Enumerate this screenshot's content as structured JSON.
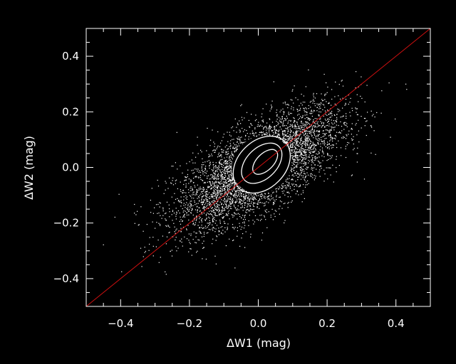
{
  "chart_data": {
    "type": "scatter",
    "title": "",
    "xlabel": "ΔW1 (mag)",
    "ylabel": "ΔW2 (mag)",
    "xlim": [
      -0.5,
      0.5
    ],
    "ylim": [
      -0.5,
      0.5
    ],
    "xticks": [
      -0.4,
      -0.2,
      0.0,
      0.2,
      0.4
    ],
    "yticks": [
      -0.4,
      -0.2,
      0.0,
      0.2,
      0.4
    ],
    "xtick_labels": [
      "−0.4",
      "−0.2",
      "0.0",
      "0.2",
      "0.4"
    ],
    "ytick_labels": [
      "−0.4",
      "−0.2",
      "0.0",
      "0.2",
      "0.4"
    ],
    "grid": false,
    "point_cloud": {
      "center": [
        0.0,
        0.0
      ],
      "correlation": 0.7,
      "sigma_x": 0.12,
      "sigma_y": 0.11,
      "color": "#ffffff"
    },
    "dense_core": {
      "x_range": [
        -0.08,
        0.1
      ],
      "y_range": [
        -0.09,
        0.11
      ],
      "color": "#000000"
    },
    "contours": [
      {
        "level": 1,
        "center": [
          0.01,
          0.01
        ],
        "semi_x": 0.095,
        "semi_y": 0.085,
        "angle_deg": 45
      },
      {
        "level": 2,
        "center": [
          0.01,
          0.015
        ],
        "semi_x": 0.07,
        "semi_y": 0.055,
        "angle_deg": 45
      },
      {
        "level": 3,
        "center": [
          0.02,
          0.02
        ],
        "semi_x": 0.045,
        "semi_y": 0.03,
        "angle_deg": 45
      }
    ],
    "series": [
      {
        "type": "line",
        "x": [
          -0.5,
          0.5
        ],
        "y": [
          -0.5,
          0.5
        ],
        "color": "#d01010"
      }
    ],
    "colors": {
      "background": "#000000",
      "axes": "#ffffff",
      "points": "#ffffff",
      "line": "#d01010"
    }
  }
}
